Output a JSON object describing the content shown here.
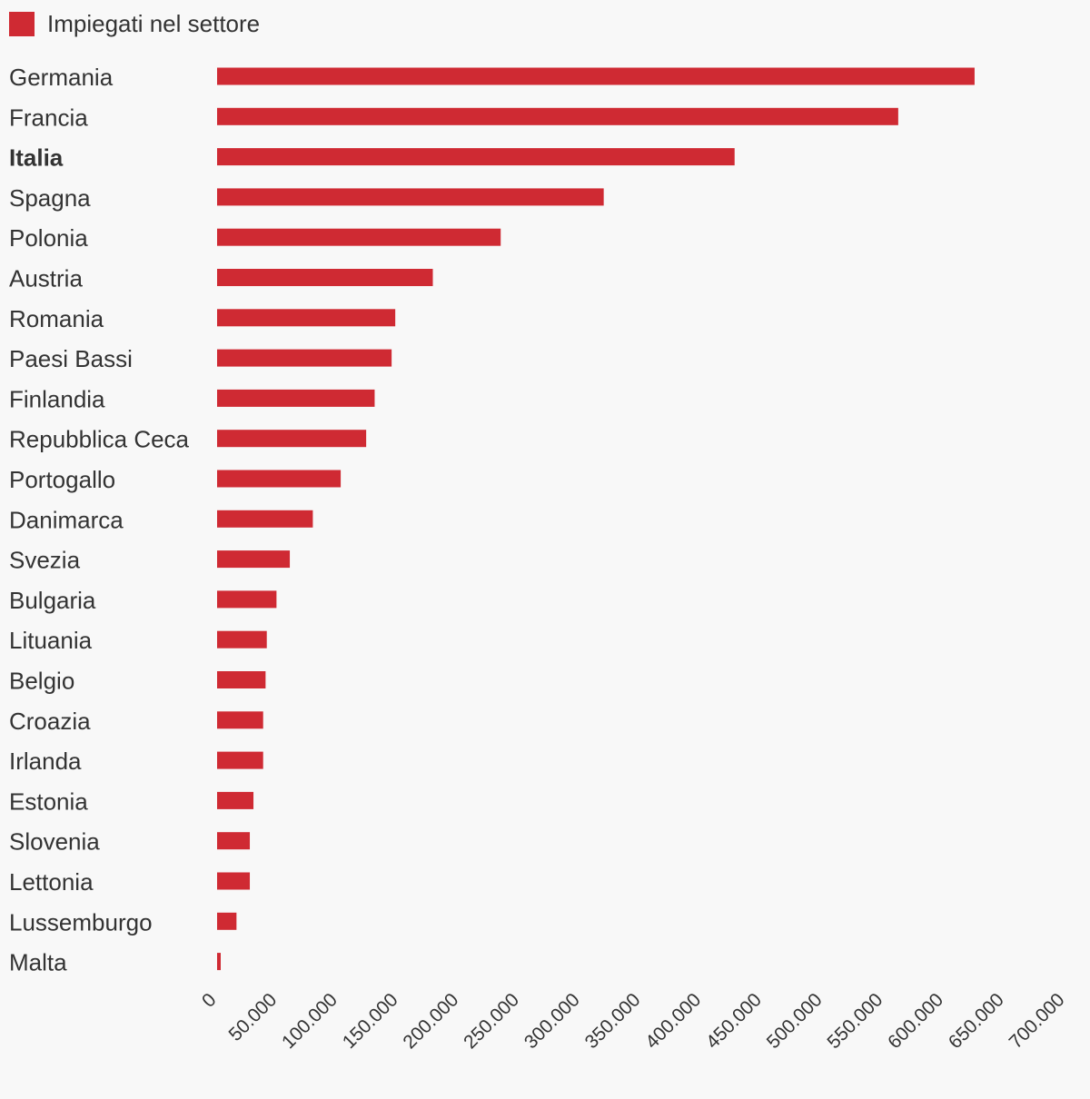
{
  "chart_data": {
    "type": "bar",
    "orientation": "horizontal",
    "title": "",
    "xlabel": "",
    "ylabel": "",
    "categories": [
      "Germania",
      "Francia",
      "Italia",
      "Spagna",
      "Polonia",
      "Austria",
      "Romania",
      "Paesi Bassi",
      "Finlandia",
      "Repubblica Ceca",
      "Portogallo",
      "Danimarca",
      "Svezia",
      "Bulgaria",
      "Lituania",
      "Belgio",
      "Croazia",
      "Irlanda",
      "Estonia",
      "Slovenia",
      "Lettonia",
      "Lussemburgo",
      "Malta"
    ],
    "highlight_category": "Italia",
    "series": [
      {
        "name": "Impiegati nel settore",
        "color": "#cf2a33",
        "values": [
          625000,
          562000,
          427000,
          319000,
          234000,
          178000,
          147000,
          144000,
          130000,
          123000,
          102000,
          79000,
          60000,
          49000,
          41000,
          40000,
          38000,
          38000,
          30000,
          27000,
          27000,
          16000,
          3000
        ]
      }
    ],
    "xlim": [
      0,
      700000
    ],
    "xticks": [
      0,
      50000,
      100000,
      150000,
      200000,
      250000,
      300000,
      350000,
      400000,
      450000,
      500000,
      550000,
      600000,
      650000,
      700000
    ],
    "xtick_labels": [
      "0",
      "50.000",
      "100.000",
      "150.000",
      "200.000",
      "250.000",
      "300.000",
      "350.000",
      "400.000",
      "450.000",
      "500.000",
      "550.000",
      "600.000",
      "650.000",
      "700.000"
    ],
    "grid": false,
    "legend_position": "top-left"
  }
}
